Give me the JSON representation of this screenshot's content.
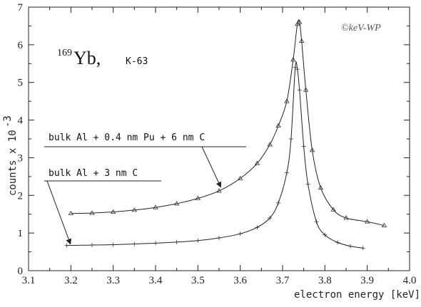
{
  "chart_data": {
    "type": "scatter",
    "title_isotope_mass": "169",
    "title_isotope_symbol": "Yb,",
    "title_line": "K-63",
    "copyright": "©keV-WP",
    "xlabel": "electron energy [keV]",
    "ylabel_main": "counts x 10",
    "ylabel_exp": "-3",
    "xlim": [
      3.1,
      4.0
    ],
    "ylim": [
      0,
      7
    ],
    "x_ticks": [
      "3.1",
      "3.2",
      "3.3",
      "3.4",
      "3.5",
      "3.6",
      "3.7",
      "3.8",
      "3.9",
      "4.0"
    ],
    "y_ticks": [
      "0",
      "1",
      "2",
      "3",
      "4",
      "5",
      "6",
      "7"
    ],
    "grid": false,
    "series": [
      {
        "name": "bulk Al + 0.4 nm Pu + 6 nm C",
        "marker": "triangle",
        "fit_line": true,
        "points": [
          [
            3.2,
            1.52
          ],
          [
            3.25,
            1.53
          ],
          [
            3.3,
            1.56
          ],
          [
            3.35,
            1.61
          ],
          [
            3.4,
            1.68
          ],
          [
            3.45,
            1.78
          ],
          [
            3.5,
            1.92
          ],
          [
            3.55,
            2.12
          ],
          [
            3.6,
            2.45
          ],
          [
            3.64,
            2.85
          ],
          [
            3.67,
            3.35
          ],
          [
            3.69,
            3.85
          ],
          [
            3.71,
            4.5
          ],
          [
            3.725,
            5.6
          ],
          [
            3.735,
            6.55
          ],
          [
            3.74,
            6.6
          ],
          [
            3.745,
            6.1
          ],
          [
            3.755,
            4.8
          ],
          [
            3.77,
            3.2
          ],
          [
            3.79,
            2.2
          ],
          [
            3.82,
            1.62
          ],
          [
            3.85,
            1.4
          ],
          [
            3.9,
            1.3
          ],
          [
            3.94,
            1.2
          ]
        ]
      },
      {
        "name": "bulk Al + 3 nm C",
        "marker": "plus",
        "fit_line": true,
        "points": [
          [
            3.19,
            0.67
          ],
          [
            3.25,
            0.68
          ],
          [
            3.3,
            0.69
          ],
          [
            3.35,
            0.71
          ],
          [
            3.4,
            0.73
          ],
          [
            3.45,
            0.76
          ],
          [
            3.5,
            0.8
          ],
          [
            3.55,
            0.87
          ],
          [
            3.6,
            0.98
          ],
          [
            3.64,
            1.15
          ],
          [
            3.67,
            1.4
          ],
          [
            3.69,
            1.8
          ],
          [
            3.71,
            2.6
          ],
          [
            3.72,
            3.5
          ],
          [
            3.73,
            5.4
          ],
          [
            3.735,
            5.35
          ],
          [
            3.74,
            4.8
          ],
          [
            3.75,
            3.3
          ],
          [
            3.76,
            2.3
          ],
          [
            3.78,
            1.3
          ],
          [
            3.8,
            0.95
          ],
          [
            3.83,
            0.75
          ],
          [
            3.86,
            0.65
          ],
          [
            3.89,
            0.6
          ]
        ]
      }
    ],
    "annotations": [
      {
        "text": "bulk Al + 0.4 nm Pu + 6 nm C",
        "series_index": 0,
        "arrow_to": [
          3.555,
          2.18
        ]
      },
      {
        "text": "bulk Al + 3 nm C",
        "series_index": 1,
        "arrow_to": [
          3.2,
          0.67
        ]
      }
    ]
  }
}
